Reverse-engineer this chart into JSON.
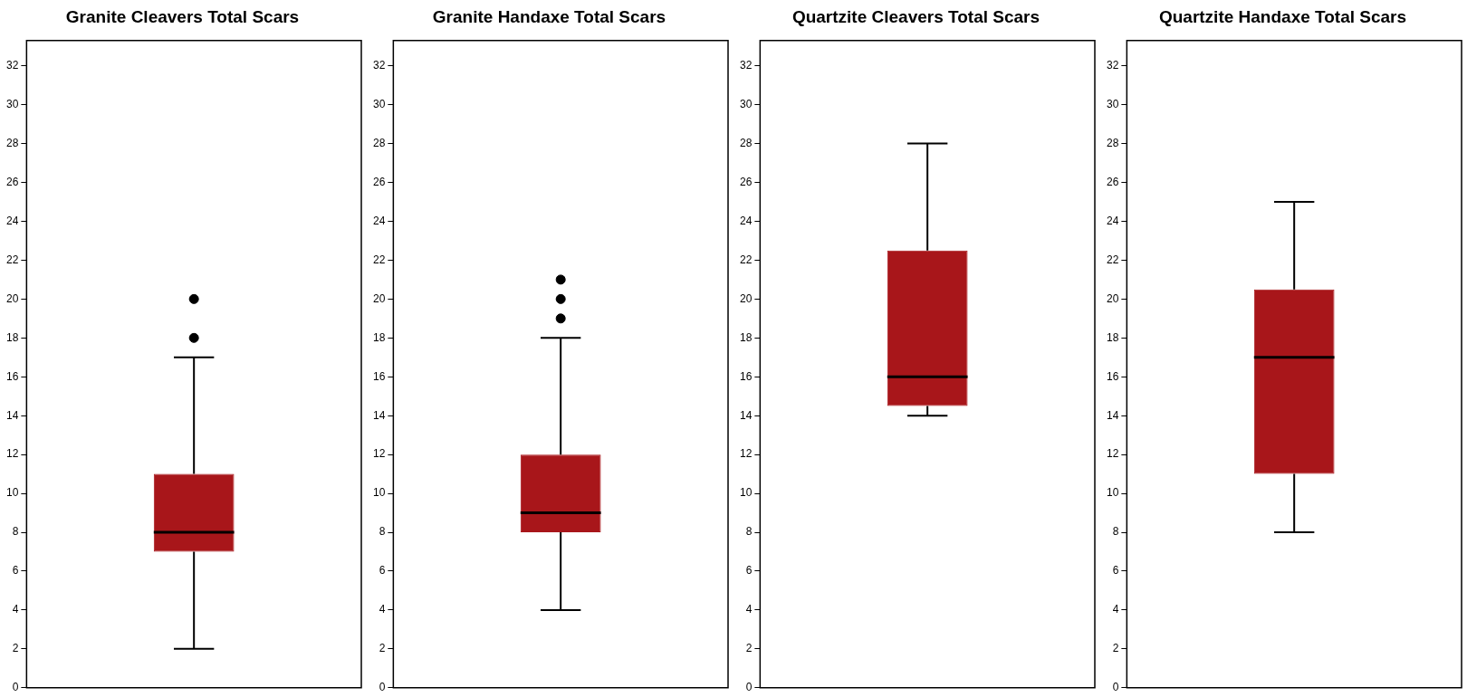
{
  "chart_data": [
    {
      "type": "box",
      "title": "Granite Cleavers Total Scars",
      "categories": [
        null
      ],
      "boxes": [
        {
          "low": 2,
          "q1": 7,
          "median": 8,
          "q3": 11,
          "high": 17,
          "outliers": [
            18,
            20
          ]
        }
      ],
      "color": "#a8161a",
      "ylim": [
        0,
        33.3
      ],
      "yticks": [
        0,
        2,
        4,
        6,
        8,
        10,
        12,
        14,
        16,
        18,
        20,
        22,
        24,
        26,
        28,
        30,
        32
      ],
      "tick_labels": "y"
    },
    {
      "type": "box",
      "title": "Granite Handaxe Total Scars",
      "categories": [
        null
      ],
      "boxes": [
        {
          "low": 4,
          "q1": 8,
          "median": 9,
          "q3": 12,
          "high": 18,
          "outliers": [
            19,
            20,
            21
          ]
        }
      ],
      "color": "#a8161a",
      "ylim": [
        0,
        33.3
      ],
      "yticks": [
        0,
        2,
        4,
        6,
        8,
        10,
        12,
        14,
        16,
        18,
        20,
        22,
        24,
        26,
        28,
        30,
        32
      ],
      "tick_labels": "y"
    },
    {
      "type": "box",
      "title": "Quartzite Cleavers Total Scars",
      "categories": [
        null
      ],
      "boxes": [
        {
          "low": 14,
          "q1": 14.5,
          "median": 16,
          "q3": 22.5,
          "high": 28
        }
      ],
      "color": "#a8161a",
      "ylim": [
        0,
        33.3
      ],
      "yticks": [
        0,
        2,
        4,
        6,
        8,
        10,
        12,
        14,
        16,
        18,
        20,
        22,
        24,
        26,
        28,
        30,
        32
      ],
      "tick_labels": "y"
    },
    {
      "type": "box",
      "title": "Quartzite Handaxe Total Scars",
      "categories": [
        null
      ],
      "boxes": [
        {
          "low": 8,
          "q1": 11,
          "median": 17,
          "q3": 20.5,
          "high": 25
        }
      ],
      "color": "#a8161a",
      "ylim": [
        0,
        33.3
      ],
      "yticks": [
        0,
        2,
        4,
        6,
        8,
        10,
        12,
        14,
        16,
        18,
        20,
        22,
        24,
        26,
        28,
        30,
        32
      ],
      "tick_labels": "y"
    }
  ]
}
